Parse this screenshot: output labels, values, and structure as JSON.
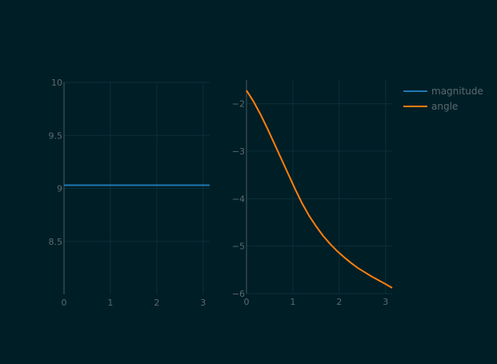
{
  "chart_data": [
    {
      "type": "line",
      "title": "",
      "xlabel": "",
      "ylabel": "",
      "xlim": [
        0,
        3.1416
      ],
      "ylim": [
        8.0,
        10.0
      ],
      "x_ticks": [
        0,
        1,
        2,
        3
      ],
      "x_tick_labels": [
        "0",
        "1",
        "2",
        "3"
      ],
      "y_ticks": [
        8.5,
        9.0,
        9.5,
        10.0
      ],
      "y_tick_labels": [
        "8.5",
        "9",
        "9.5",
        "10"
      ],
      "grid": true,
      "series": [
        {
          "name": "magnitude",
          "color": "#1f77b4",
          "x": [
            0,
            3.1416
          ],
          "y": [
            9.03,
            9.03
          ]
        }
      ]
    },
    {
      "type": "line",
      "title": "",
      "xlabel": "",
      "ylabel": "",
      "xlim": [
        0,
        3.1416
      ],
      "ylim": [
        -6.0,
        -1.5
      ],
      "x_ticks": [
        0,
        1,
        2,
        3
      ],
      "x_tick_labels": [
        "0",
        "1",
        "2",
        "3"
      ],
      "y_ticks": [
        -6,
        -5,
        -4,
        -3,
        -2
      ],
      "y_tick_labels": [
        "−6",
        "−5",
        "−4",
        "−3",
        "−2"
      ],
      "grid": true,
      "series": [
        {
          "name": "angle",
          "color": "#ff7f0e",
          "x": [
            0,
            0.15,
            0.3,
            0.45,
            0.6,
            0.75,
            0.9,
            1.05,
            1.2,
            1.35,
            1.5,
            1.65,
            1.8,
            1.95,
            2.1,
            2.25,
            2.4,
            2.55,
            2.7,
            2.85,
            3.0,
            3.1416
          ],
          "y": [
            -1.72,
            -1.95,
            -2.22,
            -2.52,
            -2.84,
            -3.16,
            -3.48,
            -3.8,
            -4.1,
            -4.36,
            -4.58,
            -4.78,
            -4.95,
            -5.1,
            -5.23,
            -5.35,
            -5.46,
            -5.55,
            -5.64,
            -5.72,
            -5.8,
            -5.88
          ]
        }
      ]
    }
  ],
  "legend": {
    "placement": "top-right",
    "items": [
      {
        "label": "magnitude",
        "color": "#1f77b4"
      },
      {
        "label": "angle",
        "color": "#ff7f0e"
      }
    ]
  }
}
